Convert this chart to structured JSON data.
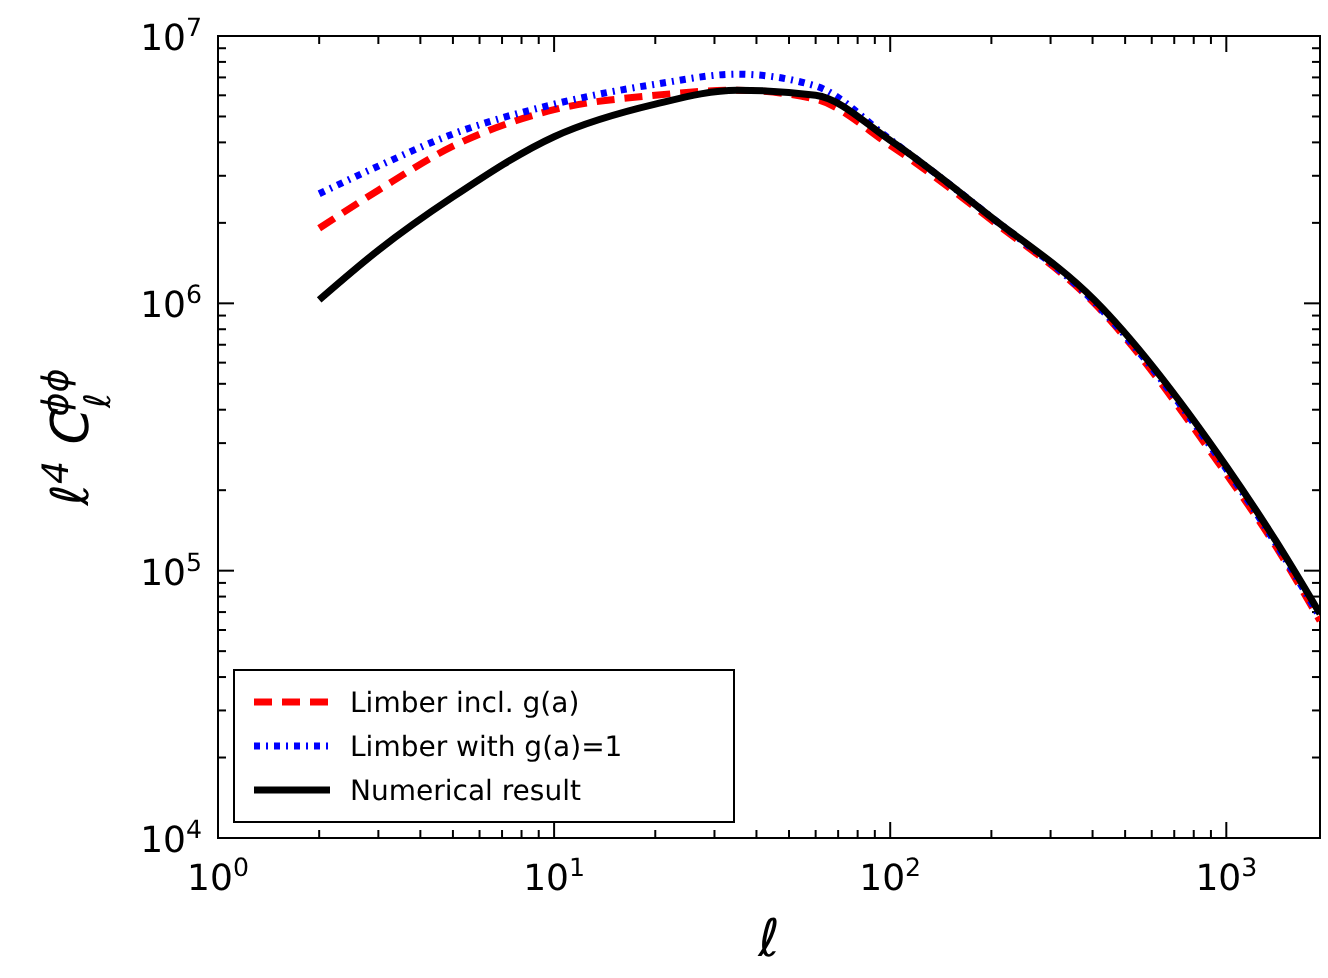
{
  "chart_data": {
    "type": "line",
    "xlabel": "ℓ",
    "ylabel": "ℓ$^{4}$ C$_{ℓ}$$^{ϕϕ}$",
    "log": "xy",
    "grid": false,
    "legend": "bottom left",
    "x": [
      2,
      3,
      5,
      10,
      20,
      35,
      60,
      100,
      200,
      405,
      1000,
      1400,
      1900
    ],
    "series": [
      {
        "name": "Limber incl. g(a)",
        "color": "#ff0000",
        "line_style": "dashed",
        "values": [
          1910000,
          2650000,
          3870000,
          5300000,
          6000000,
          6270000,
          5800000,
          3900000,
          2050000,
          1000000,
          230000,
          124000,
          65000
        ]
      },
      {
        "name": "Limber with g(a)=1",
        "color": "#0000ff",
        "line_style": "dotted",
        "values": [
          2570000,
          3260000,
          4300000,
          5560000,
          6600000,
          7200000,
          6500000,
          4100000,
          2100000,
          1010000,
          240000,
          127000,
          67000
        ]
      },
      {
        "name": "Numerical result",
        "color": "#000000",
        "line_style": "solid",
        "values": [
          1030000,
          1580000,
          2500000,
          4200000,
          5560000,
          6270000,
          6000000,
          4070000,
          2100000,
          1030000,
          246000,
          130000,
          69000
        ]
      }
    ],
    "xlim": [
      1,
      1900
    ],
    "ylim": [
      10000,
      10000000
    ],
    "xticks": [
      {
        "value": 1,
        "label": "10$^{0}$"
      },
      {
        "value": 2,
        "label": null
      },
      {
        "value": 3,
        "label": null
      },
      {
        "value": 4,
        "label": null
      },
      {
        "value": 5,
        "label": null
      },
      {
        "value": 6,
        "label": null
      },
      {
        "value": 7,
        "label": null
      },
      {
        "value": 8,
        "label": null
      },
      {
        "value": 9,
        "label": null
      },
      {
        "value": 10,
        "label": "10$^{1}$"
      },
      {
        "value": 20,
        "label": null
      },
      {
        "value": 30,
        "label": null
      },
      {
        "value": 40,
        "label": null
      },
      {
        "value": 50,
        "label": null
      },
      {
        "value": 60,
        "label": null
      },
      {
        "value": 70,
        "label": null
      },
      {
        "value": 80,
        "label": null
      },
      {
        "value": 90,
        "label": null
      },
      {
        "value": 100,
        "label": "10$^{2}$"
      },
      {
        "value": 200,
        "label": null
      },
      {
        "value": 300,
        "label": null
      },
      {
        "value": 400,
        "label": null
      },
      {
        "value": 500,
        "label": null
      },
      {
        "value": 600,
        "label": null
      },
      {
        "value": 700,
        "label": null
      },
      {
        "value": 800,
        "label": null
      },
      {
        "value": 900,
        "label": null
      },
      {
        "value": 1000,
        "label": "10$^{3}$"
      }
    ],
    "yticks": [
      {
        "value": 10000,
        "label": "10$^{4}$"
      },
      {
        "value": 20000,
        "label": null
      },
      {
        "value": 30000,
        "label": null
      },
      {
        "value": 40000,
        "label": null
      },
      {
        "value": 50000,
        "label": null
      },
      {
        "value": 60000,
        "label": null
      },
      {
        "value": 70000,
        "label": null
      },
      {
        "value": 80000,
        "label": null
      },
      {
        "value": 90000,
        "label": null
      },
      {
        "value": 100000,
        "label": "10$^{5}$"
      },
      {
        "value": 200000,
        "label": null
      },
      {
        "value": 300000,
        "label": null
      },
      {
        "value": 400000,
        "label": null
      },
      {
        "value": 500000,
        "label": null
      },
      {
        "value": 600000,
        "label": null
      },
      {
        "value": 700000,
        "label": null
      },
      {
        "value": 800000,
        "label": null
      },
      {
        "value": 900000,
        "label": null
      },
      {
        "value": 1000000,
        "label": "10$^{6}$"
      },
      {
        "value": 2000000,
        "label": null
      },
      {
        "value": 3000000,
        "label": null
      },
      {
        "value": 4000000,
        "label": null
      },
      {
        "value": 5000000,
        "label": null
      },
      {
        "value": 6000000,
        "label": null
      },
      {
        "value": 7000000,
        "label": null
      },
      {
        "value": 8000000,
        "label": null
      },
      {
        "value": 9000000,
        "label": null
      },
      {
        "value": 10000000,
        "label": "10$^{7}$"
      }
    ]
  }
}
